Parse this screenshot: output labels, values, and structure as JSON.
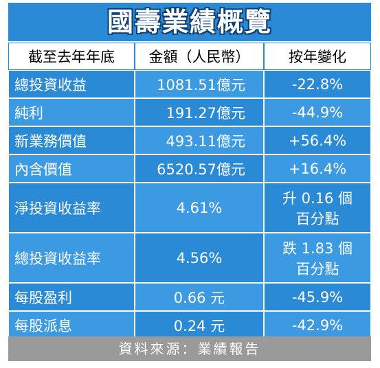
{
  "title": "國壽業績概覽",
  "table": {
    "header": [
      "截至去年年底",
      "金額（人民幣）",
      "按年變化"
    ],
    "rows": [
      [
        "總投資收益",
        "1081.51億元",
        "-22.8%"
      ],
      [
        "純利",
        "191.27億元",
        "-44.9%"
      ],
      [
        "新業務價值",
        "493.11億元",
        "+56.4%"
      ],
      [
        "內含價值",
        "6520.57億元",
        "+16.4%"
      ],
      [
        "淨投資收益率",
        "4.61%",
        [
          "升 0.16 個",
          "百分點"
        ]
      ],
      [
        "總投資收益率",
        "4.56%",
        [
          "跌 1.83 個",
          "百分點"
        ]
      ],
      [
        "每股盈利",
        "0.66 元",
        "-45.9%"
      ],
      [
        "每股派息",
        "0.24 元",
        "-42.9%"
      ]
    ]
  },
  "source": "資料來源：業績報告"
}
